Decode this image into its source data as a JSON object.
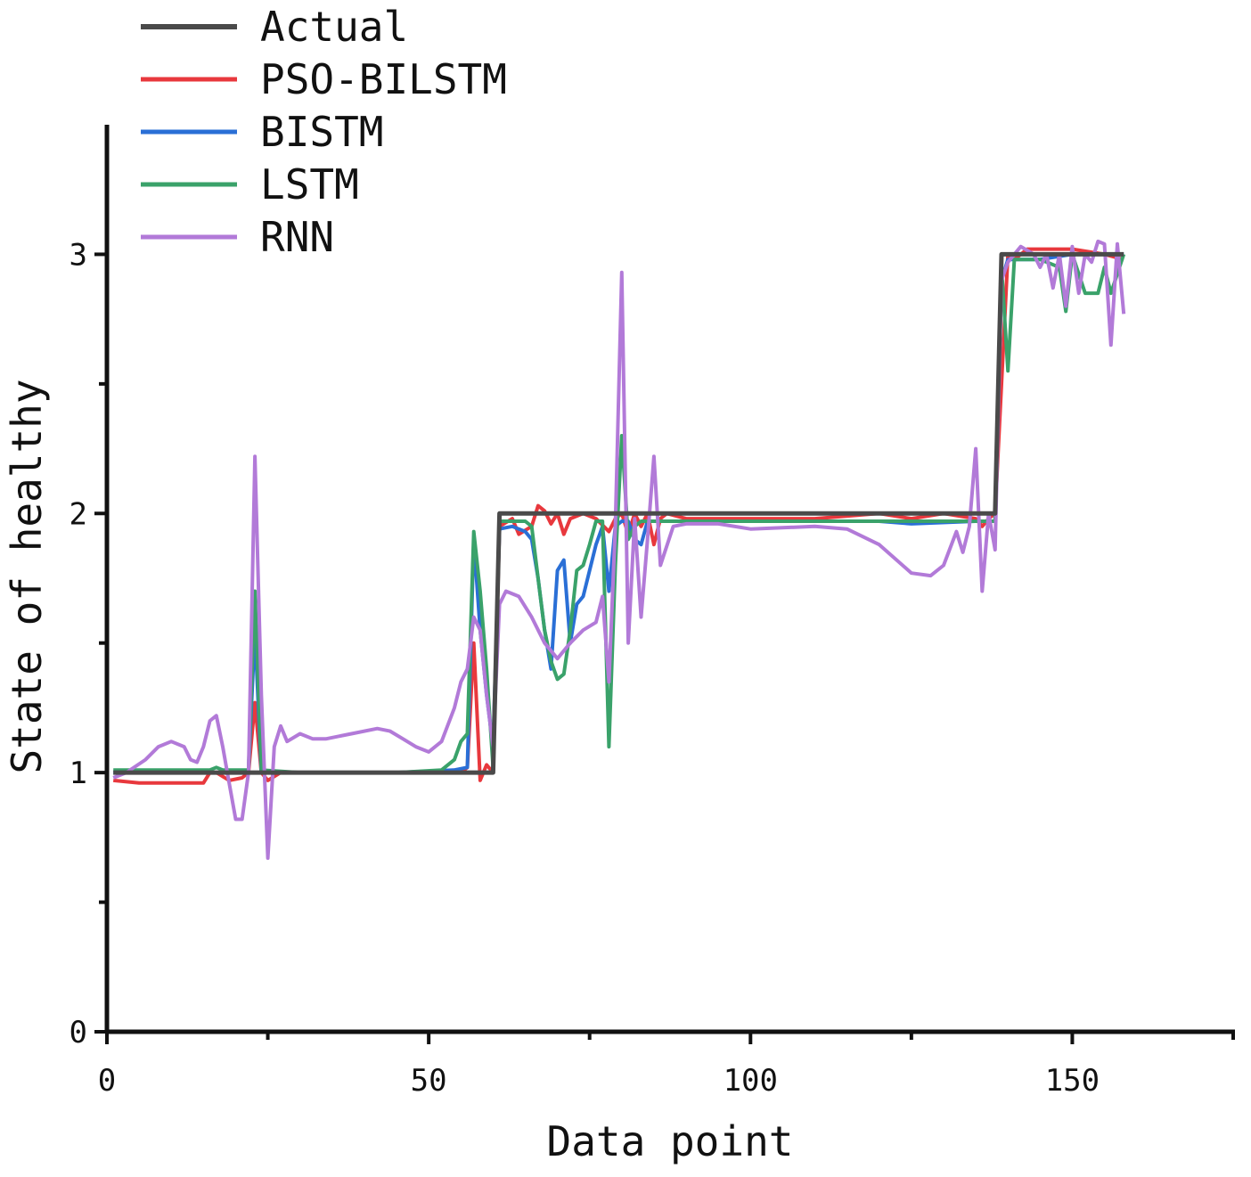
{
  "chart_data": {
    "type": "line",
    "xlabel": "Data point",
    "ylabel": "State of healthy",
    "xlim": [
      0,
      175
    ],
    "ylim": [
      0,
      3.5
    ],
    "x_ticks": [
      {
        "value": 0,
        "label": "0"
      },
      {
        "value": 50,
        "label": "50"
      },
      {
        "value": 100,
        "label": "100"
      },
      {
        "value": 150,
        "label": "150"
      }
    ],
    "x_minor_ticks": [
      25,
      75,
      125,
      175
    ],
    "y_ticks": [
      {
        "value": 0,
        "label": "0"
      },
      {
        "value": 1,
        "label": "1"
      },
      {
        "value": 2,
        "label": "2"
      },
      {
        "value": 3,
        "label": "3"
      }
    ],
    "y_minor_ticks": [
      0.5,
      1.5,
      2.5
    ],
    "legend_position": "top-left",
    "grid": false,
    "series": [
      {
        "name": "Actual",
        "color": "#4a4a4a",
        "points": [
          [
            1,
            1
          ],
          [
            60,
            1
          ],
          [
            61,
            2
          ],
          [
            138,
            2
          ],
          [
            139,
            3
          ],
          [
            158,
            3
          ]
        ]
      },
      {
        "name": "PSO-BILSTM",
        "color": "#e8383d",
        "points": [
          [
            1,
            0.97
          ],
          [
            5,
            0.96
          ],
          [
            10,
            0.96
          ],
          [
            15,
            0.96
          ],
          [
            16,
            1.0
          ],
          [
            17,
            1.0
          ],
          [
            19,
            0.97
          ],
          [
            21,
            0.98
          ],
          [
            22,
            1.0
          ],
          [
            23,
            1.27
          ],
          [
            24,
            1.0
          ],
          [
            25,
            0.97
          ],
          [
            27,
            1.0
          ],
          [
            40,
            1.0
          ],
          [
            55,
            1.0
          ],
          [
            56,
            1.02
          ],
          [
            57,
            1.5
          ],
          [
            58,
            0.97
          ],
          [
            59,
            1.03
          ],
          [
            60,
            1.0
          ],
          [
            61,
            1.95
          ],
          [
            63,
            1.98
          ],
          [
            64,
            1.92
          ],
          [
            66,
            1.95
          ],
          [
            67,
            2.03
          ],
          [
            68,
            2.01
          ],
          [
            69,
            1.96
          ],
          [
            70,
            2.0
          ],
          [
            71,
            1.92
          ],
          [
            72,
            1.98
          ],
          [
            74,
            2.0
          ],
          [
            76,
            1.98
          ],
          [
            78,
            1.93
          ],
          [
            79,
            1.98
          ],
          [
            80,
            2.0
          ],
          [
            81,
            1.92
          ],
          [
            82,
            2.0
          ],
          [
            83,
            1.95
          ],
          [
            84,
            2.0
          ],
          [
            85,
            1.88
          ],
          [
            86,
            1.98
          ],
          [
            87,
            2.0
          ],
          [
            90,
            1.98
          ],
          [
            100,
            1.98
          ],
          [
            110,
            1.98
          ],
          [
            120,
            2.0
          ],
          [
            125,
            1.98
          ],
          [
            130,
            2.0
          ],
          [
            135,
            1.98
          ],
          [
            136,
            1.95
          ],
          [
            137,
            1.98
          ],
          [
            138,
            2.0
          ],
          [
            139,
            2.5
          ],
          [
            140,
            3.0
          ],
          [
            141,
            2.98
          ],
          [
            143,
            3.02
          ],
          [
            150,
            3.02
          ],
          [
            155,
            3.0
          ],
          [
            158,
            2.98
          ]
        ]
      },
      {
        "name": "BISTM",
        "color": "#2a6fd6",
        "points": [
          [
            1,
            1.0
          ],
          [
            10,
            1.0
          ],
          [
            20,
            1.0
          ],
          [
            22,
            1.01
          ],
          [
            23,
            1.55
          ],
          [
            24,
            1.0
          ],
          [
            30,
            1.0
          ],
          [
            45,
            1.0
          ],
          [
            54,
            1.01
          ],
          [
            56,
            1.02
          ],
          [
            57,
            1.9
          ],
          [
            58,
            1.55
          ],
          [
            59,
            1.3
          ],
          [
            60,
            1.1
          ],
          [
            61,
            1.94
          ],
          [
            63,
            1.95
          ],
          [
            65,
            1.93
          ],
          [
            66,
            1.9
          ],
          [
            67,
            1.75
          ],
          [
            68,
            1.55
          ],
          [
            69,
            1.4
          ],
          [
            70,
            1.78
          ],
          [
            71,
            1.82
          ],
          [
            72,
            1.5
          ],
          [
            73,
            1.65
          ],
          [
            74,
            1.68
          ],
          [
            75,
            1.78
          ],
          [
            76,
            1.88
          ],
          [
            77,
            1.95
          ],
          [
            78,
            1.7
          ],
          [
            79,
            1.95
          ],
          [
            80,
            1.97
          ],
          [
            81,
            1.97
          ],
          [
            82,
            1.9
          ],
          [
            83,
            1.88
          ],
          [
            84,
            1.97
          ],
          [
            90,
            1.97
          ],
          [
            100,
            1.97
          ],
          [
            120,
            1.97
          ],
          [
            125,
            1.96
          ],
          [
            135,
            1.97
          ],
          [
            137,
            1.97
          ],
          [
            138,
            1.97
          ],
          [
            139,
            2.9
          ],
          [
            140,
            2.98
          ],
          [
            145,
            2.98
          ],
          [
            150,
            3.0
          ],
          [
            155,
            3.0
          ],
          [
            158,
            3.0
          ]
        ]
      },
      {
        "name": "LSTM",
        "color": "#3aa26a",
        "points": [
          [
            1,
            1.01
          ],
          [
            10,
            1.01
          ],
          [
            16,
            1.01
          ],
          [
            17,
            1.02
          ],
          [
            18,
            1.01
          ],
          [
            22,
            1.01
          ],
          [
            23,
            1.7
          ],
          [
            24,
            1.01
          ],
          [
            30,
            1.0
          ],
          [
            45,
            1.0
          ],
          [
            52,
            1.01
          ],
          [
            54,
            1.05
          ],
          [
            55,
            1.12
          ],
          [
            56,
            1.15
          ],
          [
            57,
            1.93
          ],
          [
            58,
            1.7
          ],
          [
            59,
            1.4
          ],
          [
            60,
            1.02
          ],
          [
            61,
            1.97
          ],
          [
            63,
            1.97
          ],
          [
            65,
            1.97
          ],
          [
            66,
            1.95
          ],
          [
            67,
            1.75
          ],
          [
            68,
            1.55
          ],
          [
            69,
            1.43
          ],
          [
            70,
            1.36
          ],
          [
            71,
            1.38
          ],
          [
            72,
            1.55
          ],
          [
            73,
            1.78
          ],
          [
            74,
            1.8
          ],
          [
            75,
            1.88
          ],
          [
            76,
            1.97
          ],
          [
            77,
            1.97
          ],
          [
            78,
            1.1
          ],
          [
            79,
            1.8
          ],
          [
            80,
            2.3
          ],
          [
            81,
            1.9
          ],
          [
            82,
            1.95
          ],
          [
            83,
            1.97
          ],
          [
            90,
            1.97
          ],
          [
            110,
            1.97
          ],
          [
            130,
            1.97
          ],
          [
            137,
            1.97
          ],
          [
            138,
            1.97
          ],
          [
            139,
            2.95
          ],
          [
            140,
            2.55
          ],
          [
            141,
            2.98
          ],
          [
            145,
            2.98
          ],
          [
            148,
            2.95
          ],
          [
            149,
            2.78
          ],
          [
            150,
            3.0
          ],
          [
            152,
            2.85
          ],
          [
            154,
            2.85
          ],
          [
            155,
            2.95
          ],
          [
            156,
            2.85
          ],
          [
            158,
            3.0
          ]
        ]
      },
      {
        "name": "RNN",
        "color": "#b27ad8",
        "points": [
          [
            1,
            0.98
          ],
          [
            3,
            1.0
          ],
          [
            6,
            1.05
          ],
          [
            8,
            1.1
          ],
          [
            10,
            1.12
          ],
          [
            12,
            1.1
          ],
          [
            13,
            1.05
          ],
          [
            14,
            1.04
          ],
          [
            15,
            1.1
          ],
          [
            16,
            1.2
          ],
          [
            17,
            1.22
          ],
          [
            18,
            1.1
          ],
          [
            19,
            0.96
          ],
          [
            20,
            0.82
          ],
          [
            21,
            0.82
          ],
          [
            22,
            1.0
          ],
          [
            23,
            2.22
          ],
          [
            24,
            1.3
          ],
          [
            25,
            0.67
          ],
          [
            26,
            1.1
          ],
          [
            27,
            1.18
          ],
          [
            28,
            1.12
          ],
          [
            30,
            1.15
          ],
          [
            32,
            1.13
          ],
          [
            34,
            1.13
          ],
          [
            38,
            1.15
          ],
          [
            42,
            1.17
          ],
          [
            44,
            1.16
          ],
          [
            46,
            1.13
          ],
          [
            48,
            1.1
          ],
          [
            50,
            1.08
          ],
          [
            52,
            1.12
          ],
          [
            54,
            1.25
          ],
          [
            55,
            1.35
          ],
          [
            56,
            1.4
          ],
          [
            57,
            1.6
          ],
          [
            58,
            1.55
          ],
          [
            59,
            1.3
          ],
          [
            60,
            1.1
          ],
          [
            61,
            1.65
          ],
          [
            62,
            1.7
          ],
          [
            64,
            1.68
          ],
          [
            66,
            1.6
          ],
          [
            68,
            1.5
          ],
          [
            70,
            1.44
          ],
          [
            72,
            1.5
          ],
          [
            74,
            1.55
          ],
          [
            76,
            1.58
          ],
          [
            77,
            1.68
          ],
          [
            78,
            1.35
          ],
          [
            79,
            1.95
          ],
          [
            80,
            2.93
          ],
          [
            81,
            1.5
          ],
          [
            82,
            1.98
          ],
          [
            83,
            1.6
          ],
          [
            84,
            1.9
          ],
          [
            85,
            2.22
          ],
          [
            86,
            1.8
          ],
          [
            88,
            1.95
          ],
          [
            90,
            1.96
          ],
          [
            95,
            1.96
          ],
          [
            100,
            1.94
          ],
          [
            110,
            1.95
          ],
          [
            115,
            1.94
          ],
          [
            120,
            1.88
          ],
          [
            125,
            1.77
          ],
          [
            128,
            1.76
          ],
          [
            130,
            1.8
          ],
          [
            132,
            1.93
          ],
          [
            133,
            1.85
          ],
          [
            134,
            1.95
          ],
          [
            135,
            2.25
          ],
          [
            136,
            1.7
          ],
          [
            137,
            2.0
          ],
          [
            138,
            1.86
          ],
          [
            139,
            2.9
          ],
          [
            140,
            2.97
          ],
          [
            142,
            3.03
          ],
          [
            144,
            3.0
          ],
          [
            145,
            2.95
          ],
          [
            146,
            3.0
          ],
          [
            147,
            2.87
          ],
          [
            148,
            3.0
          ],
          [
            149,
            2.8
          ],
          [
            150,
            3.03
          ],
          [
            151,
            2.85
          ],
          [
            152,
            3.0
          ],
          [
            153,
            2.97
          ],
          [
            154,
            3.05
          ],
          [
            155,
            3.04
          ],
          [
            156,
            2.65
          ],
          [
            157,
            3.04
          ],
          [
            158,
            2.77
          ]
        ]
      }
    ]
  }
}
